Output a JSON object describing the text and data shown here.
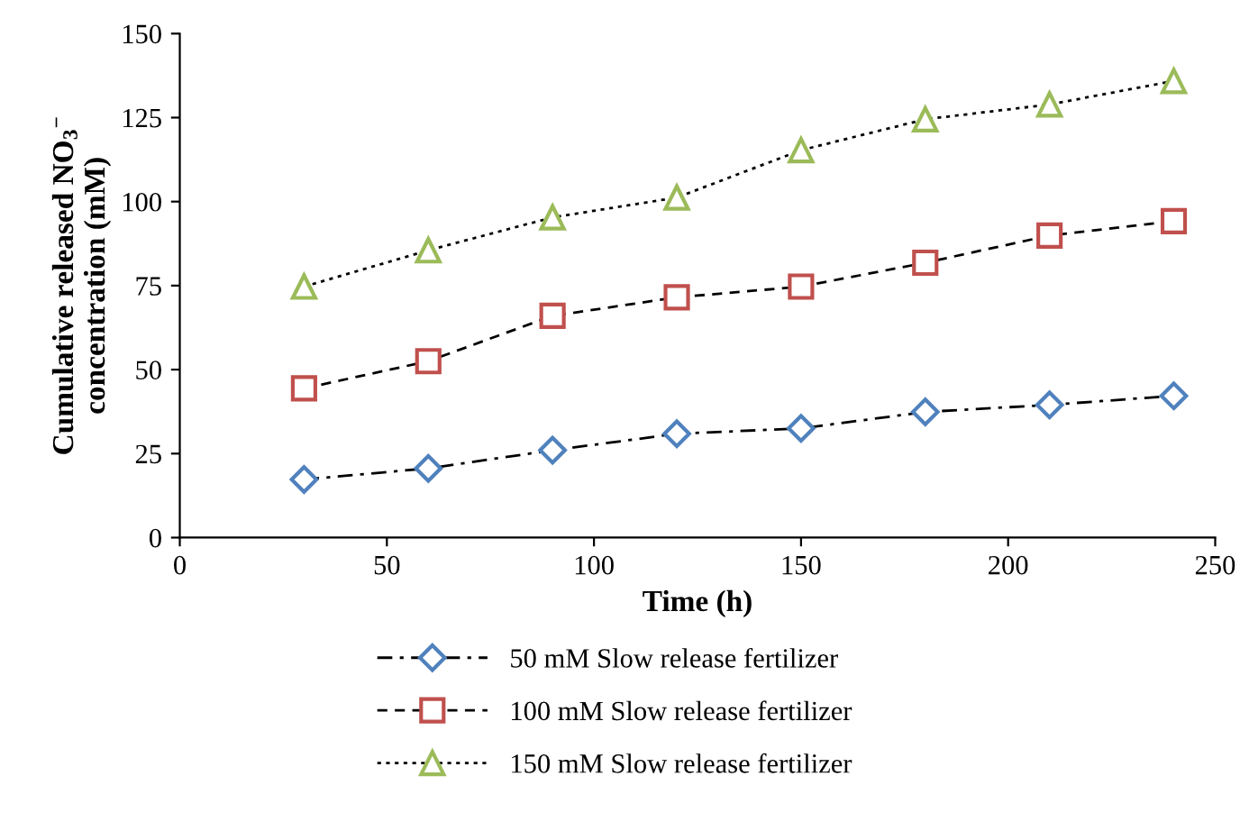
{
  "chart_data": {
    "type": "line",
    "xlabel": "Time (h)",
    "ylabel": "Cumulative released NO$_{3}$$^{−}$\nconcentration (mM)",
    "x": [
      30,
      60,
      90,
      120,
      150,
      180,
      210,
      240
    ],
    "series": [
      {
        "name": "50 mM Slow release fertilizer",
        "color": "#4f81bd",
        "marker": "diamond",
        "line_style": "dashdot",
        "values": [
          17.3,
          20.6,
          26,
          30.9,
          32.5,
          37.4,
          39.5,
          42.2
        ]
      },
      {
        "name": "100 mM Slow release fertilizer",
        "color": "#c0504d",
        "marker": "square",
        "line_style": "dashed",
        "values": [
          44.4,
          52.5,
          66,
          71.5,
          74.7,
          81.8,
          89.9,
          94.2
        ]
      },
      {
        "name": "150 mM Slow release fertilizer",
        "color": "#9bbb59",
        "marker": "triangle",
        "line_style": "dotted",
        "values": [
          74.7,
          85.5,
          95.3,
          101.2,
          115.3,
          124.5,
          128.9,
          135.9
        ]
      }
    ],
    "xlim": [
      0,
      250
    ],
    "xticks": [
      0,
      50,
      100,
      150,
      200,
      250
    ],
    "ylim": [
      0,
      150
    ],
    "yticks": [
      0,
      25,
      50,
      75,
      100,
      125,
      150
    ],
    "grid": false,
    "legend": "bottom"
  }
}
